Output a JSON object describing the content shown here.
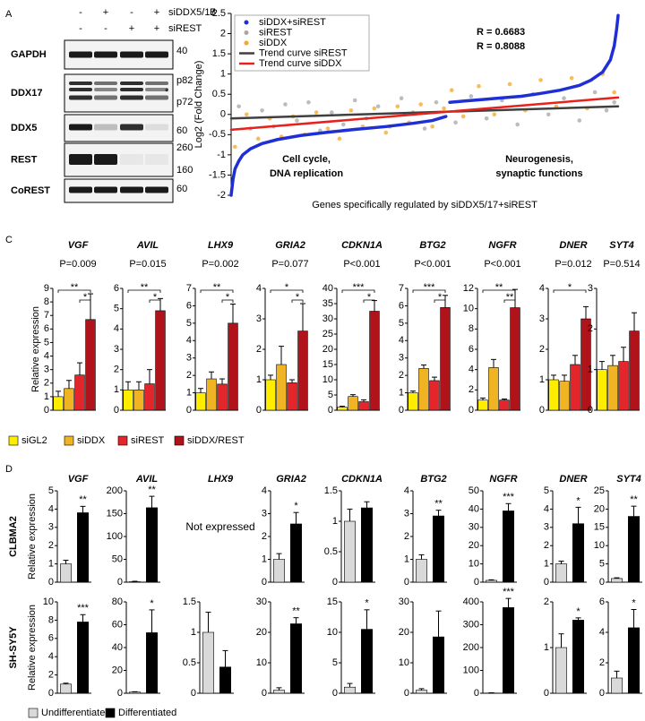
{
  "panel_labels": [
    "A",
    "B",
    "C",
    "D"
  ],
  "blot": {
    "conditions": [
      {
        "label": "siDDX5/17",
        "signs": [
          "-",
          "+",
          "-",
          "+"
        ]
      },
      {
        "label": "siREST",
        "signs": [
          "-",
          "-",
          "+",
          "+"
        ]
      }
    ],
    "rows": [
      {
        "protein": "GAPDH",
        "markers": [
          "40"
        ]
      },
      {
        "protein": "DDX17",
        "markers": [
          "p82",
          "*",
          "p72"
        ]
      },
      {
        "protein": "DDX5",
        "markers": [
          "60"
        ]
      },
      {
        "protein": "REST",
        "markers": [
          "260",
          "160"
        ]
      },
      {
        "protein": "CoREST",
        "markers": [
          "60"
        ]
      }
    ]
  },
  "chart_data": [
    {
      "type": "scatter",
      "xlabel": "Genes specifically regulated by siDDX5/17+siREST",
      "ylabel": "Log2 (Fold Change)",
      "xlim": [
        0,
        100
      ],
      "ylim": [
        -2,
        2.5
      ],
      "yticks": [
        -2,
        -1.5,
        -1,
        -0.5,
        0,
        0.5,
        1,
        1.5,
        2,
        2.5
      ],
      "legend": "upper left",
      "series": [
        {
          "name": "siDDX+siREST",
          "color": "#1f2fd6",
          "mode": "curve",
          "x": [
            0,
            0.5,
            1,
            2,
            3,
            5,
            8,
            12,
            18,
            25,
            32,
            40,
            47,
            52,
            55.5,
            56,
            56.5,
            60,
            65,
            70,
            75,
            80,
            85,
            90,
            93,
            96,
            98,
            99,
            99.6,
            100
          ],
          "values": [
            -2,
            -1.6,
            -1.35,
            -1.15,
            -1,
            -0.85,
            -0.72,
            -0.62,
            -0.52,
            -0.44,
            -0.37,
            -0.3,
            -0.22,
            -0.15,
            -0.05,
            null,
            0.3,
            0.33,
            0.37,
            0.41,
            0.45,
            0.52,
            0.6,
            0.72,
            0.85,
            1.05,
            1.35,
            1.7,
            2.1,
            2.45
          ]
        },
        {
          "name": "siREST",
          "color": "#a6a6a6",
          "mode": "points",
          "x": [
            2,
            5,
            8,
            11,
            14,
            17,
            20,
            23,
            26,
            29,
            32,
            35,
            38,
            41,
            44,
            47,
            50,
            53,
            58,
            62,
            66,
            70,
            74,
            78,
            82,
            86,
            90,
            94,
            97,
            99
          ],
          "values": [
            0.2,
            -0.35,
            0.1,
            -0.3,
            0.25,
            -0.15,
            0.3,
            -0.4,
            0.05,
            -0.25,
            0.35,
            -0.1,
            0.2,
            -0.3,
            0.4,
            0.05,
            -0.35,
            0.3,
            -0.2,
            0.45,
            -0.1,
            0.35,
            -0.25,
            0.5,
            0,
            0.4,
            -0.15,
            0.55,
            0.1,
            0.3
          ]
        },
        {
          "name": "siDDX",
          "color": "#f5a623",
          "mode": "points",
          "x": [
            1,
            4,
            7,
            10,
            13,
            16,
            19,
            22,
            25,
            28,
            31,
            34,
            37,
            40,
            43,
            46,
            49,
            52,
            55,
            57,
            60,
            64,
            68,
            72,
            76,
            80,
            84,
            88,
            92,
            96,
            99
          ],
          "values": [
            -0.8,
            0,
            -0.6,
            -0.1,
            -0.55,
            -0.05,
            -0.5,
            0.05,
            -0.35,
            -0.6,
            0.1,
            -0.3,
            0.15,
            -0.45,
            0.2,
            -0.2,
            0.25,
            -0.3,
            0.15,
            0.6,
            -0.05,
            0.7,
            0,
            0.75,
            0.1,
            0.85,
            0.2,
            0.9,
            0.15,
            1.0,
            0.55
          ]
        },
        {
          "name": "Trend curve siREST",
          "color": "#404040",
          "mode": "line",
          "x": [
            0,
            100
          ],
          "values": [
            -0.1,
            0.2
          ]
        },
        {
          "name": "Trend curve siDDX",
          "color": "#e8211c",
          "mode": "line",
          "x": [
            0,
            100
          ],
          "values": [
            -0.38,
            0.42
          ]
        }
      ],
      "annotations": [
        {
          "text": "R = 0.6683",
          "color": "#404040"
        },
        {
          "text": "R = 0.8088",
          "color": "#e8211c"
        },
        {
          "text": "Cell cycle,"
        },
        {
          "text": "DNA replication"
        },
        {
          "text": "Neurogenesis,"
        },
        {
          "text": "synaptic functions"
        }
      ]
    },
    {
      "type": "bar",
      "title": "VGF",
      "subtitle": "P=0.009",
      "ylabel": "Relative expression",
      "values": [
        1.0,
        1.6,
        2.6,
        6.7
      ],
      "errors": [
        0.4,
        0.6,
        0.9,
        1.9
      ],
      "ylim": [
        0,
        9
      ],
      "yticks": [
        0,
        1,
        2,
        3,
        4,
        5,
        6,
        7,
        8,
        9
      ],
      "significance": [
        {
          "from": 2,
          "to": 3,
          "label": "*"
        },
        {
          "from": 0,
          "to": 3,
          "label": "**"
        }
      ]
    },
    {
      "type": "bar",
      "title": "AVIL",
      "subtitle": "P=0.015",
      "values": [
        1.0,
        1.0,
        1.3,
        4.9
      ],
      "errors": [
        0.4,
        0.4,
        0.7,
        0.6
      ],
      "ylim": [
        0,
        6
      ],
      "yticks": [
        0,
        1,
        2,
        3,
        4,
        5,
        6
      ],
      "significance": [
        {
          "from": 2,
          "to": 3,
          "label": "*"
        },
        {
          "from": 0,
          "to": 3,
          "label": "**"
        }
      ]
    },
    {
      "type": "bar",
      "title": "LHX9",
      "subtitle": "P=0.002",
      "values": [
        1.0,
        1.8,
        1.5,
        5.0
      ],
      "errors": [
        0.25,
        0.4,
        0.3,
        1.1
      ],
      "ylim": [
        0,
        7
      ],
      "yticks": [
        0,
        1,
        2,
        3,
        4,
        5,
        6,
        7
      ],
      "significance": [
        {
          "from": 2,
          "to": 3,
          "label": "*"
        },
        {
          "from": 0,
          "to": 3,
          "label": "**"
        }
      ]
    },
    {
      "type": "bar",
      "title": "GRIA2",
      "subtitle": "P=0.077",
      "values": [
        1.0,
        1.5,
        0.9,
        2.6
      ],
      "errors": [
        0.15,
        0.6,
        0.1,
        0.9
      ],
      "ylim": [
        0,
        4
      ],
      "yticks": [
        0,
        1,
        2,
        3,
        4
      ],
      "significance": [
        {
          "from": 2,
          "to": 3,
          "label": "*"
        },
        {
          "from": 0,
          "to": 3,
          "label": "*"
        }
      ]
    },
    {
      "type": "bar",
      "title": "CDKN1A",
      "subtitle": "P<0.001",
      "values": [
        1.0,
        4.5,
        2.8,
        32.5
      ],
      "errors": [
        0.3,
        0.6,
        0.6,
        3.5
      ],
      "ylim": [
        0,
        40
      ],
      "yticks": [
        0,
        5,
        10,
        15,
        20,
        25,
        30,
        35,
        40
      ],
      "significance": [
        {
          "from": 2,
          "to": 3,
          "label": "*"
        },
        {
          "from": 0,
          "to": 3,
          "label": "***"
        }
      ]
    },
    {
      "type": "bar",
      "title": "BTG2",
      "subtitle": "P<0.001",
      "values": [
        1.0,
        2.4,
        1.7,
        5.9
      ],
      "errors": [
        0.1,
        0.2,
        0.2,
        0.7
      ],
      "ylim": [
        0,
        7
      ],
      "yticks": [
        0,
        1,
        2,
        3,
        4,
        5,
        6,
        7
      ],
      "significance": [
        {
          "from": 2,
          "to": 3,
          "label": "*"
        },
        {
          "from": 0,
          "to": 3,
          "label": "***"
        }
      ]
    },
    {
      "type": "bar",
      "title": "NGFR",
      "subtitle": "P<0.001",
      "values": [
        1.0,
        4.2,
        1.0,
        10.1
      ],
      "errors": [
        0.2,
        0.8,
        0.1,
        1.8
      ],
      "ylim": [
        0,
        12
      ],
      "yticks": [
        0,
        2,
        4,
        6,
        8,
        10,
        12
      ],
      "significance": [
        {
          "from": 2,
          "to": 3,
          "label": "**"
        },
        {
          "from": 0,
          "to": 3,
          "label": "**"
        }
      ]
    },
    {
      "type": "bar",
      "title": "DNER",
      "subtitle": "P=0.012",
      "values": [
        1.0,
        0.95,
        1.5,
        3.0
      ],
      "errors": [
        0.15,
        0.2,
        0.3,
        0.4
      ],
      "ylim": [
        0,
        4
      ],
      "yticks": [
        0,
        1,
        2,
        3,
        4
      ],
      "significance": [
        {
          "from": 0,
          "to": 3,
          "label": "*"
        }
      ]
    },
    {
      "type": "bar",
      "title": "SYT4",
      "subtitle": "P=0.514",
      "values": [
        1.0,
        1.1,
        1.2,
        1.95
      ],
      "errors": [
        0.2,
        0.25,
        0.35,
        0.45
      ],
      "ylim": [
        0,
        3
      ],
      "yticks": [
        0,
        1,
        2,
        3
      ]
    },
    {
      "type": "bar",
      "title": "VGF",
      "values": [
        1.0,
        3.8
      ],
      "errors": [
        0.2,
        0.35
      ],
      "ylim": [
        0,
        5
      ],
      "yticks": [
        0,
        1,
        2,
        3,
        4,
        5
      ],
      "annotation": "**"
    },
    {
      "type": "bar",
      "title": "AVIL",
      "values": [
        1,
        163
      ],
      "errors": [
        1,
        25
      ],
      "ylim": [
        0,
        200
      ],
      "yticks": [
        0,
        50,
        100,
        150,
        200
      ],
      "annotation": "**"
    },
    {
      "type": "bar",
      "title": "LHX9",
      "note": "Not expressed"
    },
    {
      "type": "bar",
      "title": "GRIA2",
      "values": [
        1.0,
        2.55
      ],
      "errors": [
        0.25,
        0.5
      ],
      "ylim": [
        0,
        4
      ],
      "yticks": [
        0,
        1,
        2,
        3,
        4
      ],
      "annotation": "*"
    },
    {
      "type": "bar",
      "title": "CDKN1A",
      "values": [
        1.0,
        1.22
      ],
      "errors": [
        0.2,
        0.1
      ],
      "ylim": [
        0,
        1.5
      ],
      "yticks": [
        0,
        0.5,
        1,
        1.5
      ]
    },
    {
      "type": "bar",
      "title": "BTG2",
      "values": [
        1.0,
        2.9
      ],
      "errors": [
        0.2,
        0.25
      ],
      "ylim": [
        0,
        4
      ],
      "yticks": [
        0,
        1,
        2,
        3,
        4
      ],
      "annotation": "**"
    },
    {
      "type": "bar",
      "title": "NGFR",
      "values": [
        1,
        39
      ],
      "errors": [
        0.3,
        4
      ],
      "ylim": [
        0,
        50
      ],
      "yticks": [
        0,
        10,
        20,
        30,
        40,
        50
      ],
      "annotation": "***"
    },
    {
      "type": "bar",
      "title": "DNER",
      "values": [
        1.0,
        3.2
      ],
      "errors": [
        0.15,
        0.9
      ],
      "ylim": [
        0,
        5
      ],
      "yticks": [
        0,
        1,
        2,
        3,
        4,
        5
      ],
      "annotation": "*"
    },
    {
      "type": "bar",
      "title": "SYT4",
      "values": [
        1,
        18
      ],
      "errors": [
        0.2,
        2.8
      ],
      "ylim": [
        0,
        25
      ],
      "yticks": [
        0,
        5,
        10,
        15,
        20,
        25
      ],
      "annotation": "**"
    },
    {
      "type": "bar",
      "values": [
        1,
        7.8
      ],
      "errors": [
        0.1,
        0.8
      ],
      "ylim": [
        0,
        10
      ],
      "yticks": [
        0,
        2,
        4,
        6,
        8,
        10
      ],
      "annotation": "***"
    },
    {
      "type": "bar",
      "values": [
        1,
        53
      ],
      "errors": [
        0.3,
        20
      ],
      "ylim": [
        0,
        80
      ],
      "yticks": [
        0,
        20,
        40,
        60,
        80
      ],
      "annotation": "*"
    },
    {
      "type": "bar",
      "values": [
        1.0,
        0.43
      ],
      "errors": [
        0.33,
        0.27
      ],
      "ylim": [
        0,
        1.5
      ],
      "yticks": [
        0,
        0.5,
        1,
        1.5
      ]
    },
    {
      "type": "bar",
      "values": [
        1,
        22.8
      ],
      "errors": [
        0.8,
        2
      ],
      "ylim": [
        0,
        30
      ],
      "yticks": [
        0,
        10,
        20,
        30
      ],
      "annotation": "**"
    },
    {
      "type": "bar",
      "values": [
        1,
        10.5
      ],
      "errors": [
        0.6,
        3.2
      ],
      "ylim": [
        0,
        15
      ],
      "yticks": [
        0,
        5,
        10,
        15
      ],
      "annotation": "*"
    },
    {
      "type": "bar",
      "values": [
        1,
        18.5
      ],
      "errors": [
        0.5,
        8.5
      ],
      "ylim": [
        0,
        30
      ],
      "yticks": [
        0,
        10,
        20,
        30
      ]
    },
    {
      "type": "bar",
      "values": [
        1,
        375
      ],
      "errors": [
        1,
        40
      ],
      "ylim": [
        0,
        400
      ],
      "yticks": [
        0,
        100,
        200,
        300,
        400
      ],
      "annotation": "***"
    },
    {
      "type": "bar",
      "values": [
        1.0,
        1.6
      ],
      "errors": [
        0.3,
        0.05
      ],
      "ylim": [
        0,
        2
      ],
      "yticks": [
        0,
        1,
        2
      ],
      "annotation": "*"
    },
    {
      "type": "bar",
      "values": [
        1,
        4.3
      ],
      "errors": [
        0.45,
        1.2
      ],
      "ylim": [
        0,
        6
      ],
      "yticks": [
        0,
        2,
        4,
        6
      ],
      "annotation": "*"
    }
  ],
  "legend_c": {
    "labels": [
      "siGL2",
      "siDDX",
      "siREST",
      "siDDX/REST"
    ],
    "colors": [
      "#ffed00",
      "#f0b323",
      "#e3262b",
      "#b0131a"
    ]
  },
  "panel_d": {
    "rows": [
      {
        "name": "CLBMA2",
        "ylabel": "Relative expression"
      },
      {
        "name": "SH-SY5Y",
        "ylabel": "Relative expression"
      }
    ],
    "legend": {
      "labels": [
        "Undifferentiated",
        "Differentiated"
      ],
      "colors": [
        "#d9d9d9",
        "#000000"
      ]
    }
  }
}
